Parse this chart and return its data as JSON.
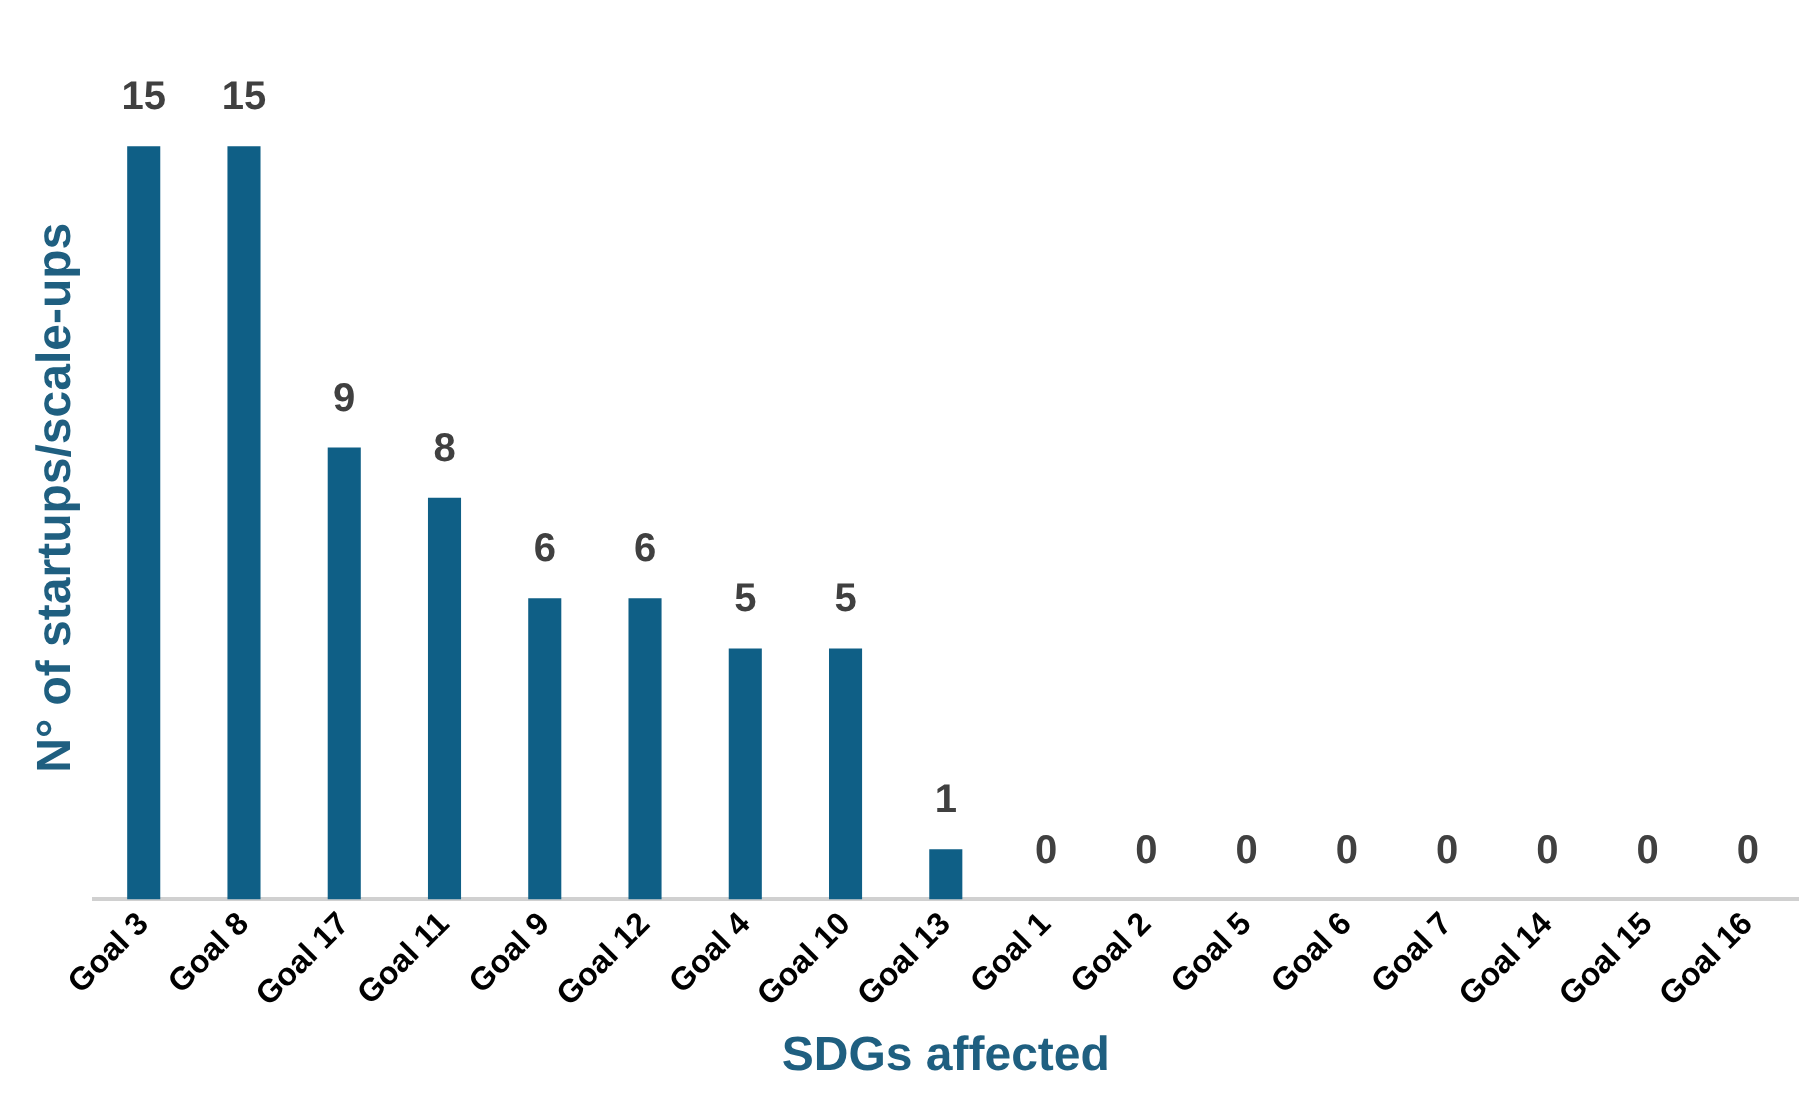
{
  "chart_data": {
    "type": "bar",
    "xlabel": "SDGs affected",
    "ylabel": "N° of startups/scale-ups",
    "categories": [
      "Goal 3",
      "Goal 8",
      "Goal 17",
      "Goal 11",
      "Goal 9",
      "Goal 12",
      "Goal 4",
      "Goal 10",
      "Goal 13",
      "Goal 1",
      "Goal 2",
      "Goal 5",
      "Goal 6",
      "Goal 7",
      "Goal 14",
      "Goal 15",
      "Goal 16"
    ],
    "values": [
      15,
      15,
      9,
      8,
      6,
      6,
      5,
      5,
      1,
      0,
      0,
      0,
      0,
      0,
      0,
      0,
      0
    ],
    "color": "#0f5f86",
    "data_labels": true,
    "grid": false,
    "legend": false,
    "tick_labels": "x"
  }
}
